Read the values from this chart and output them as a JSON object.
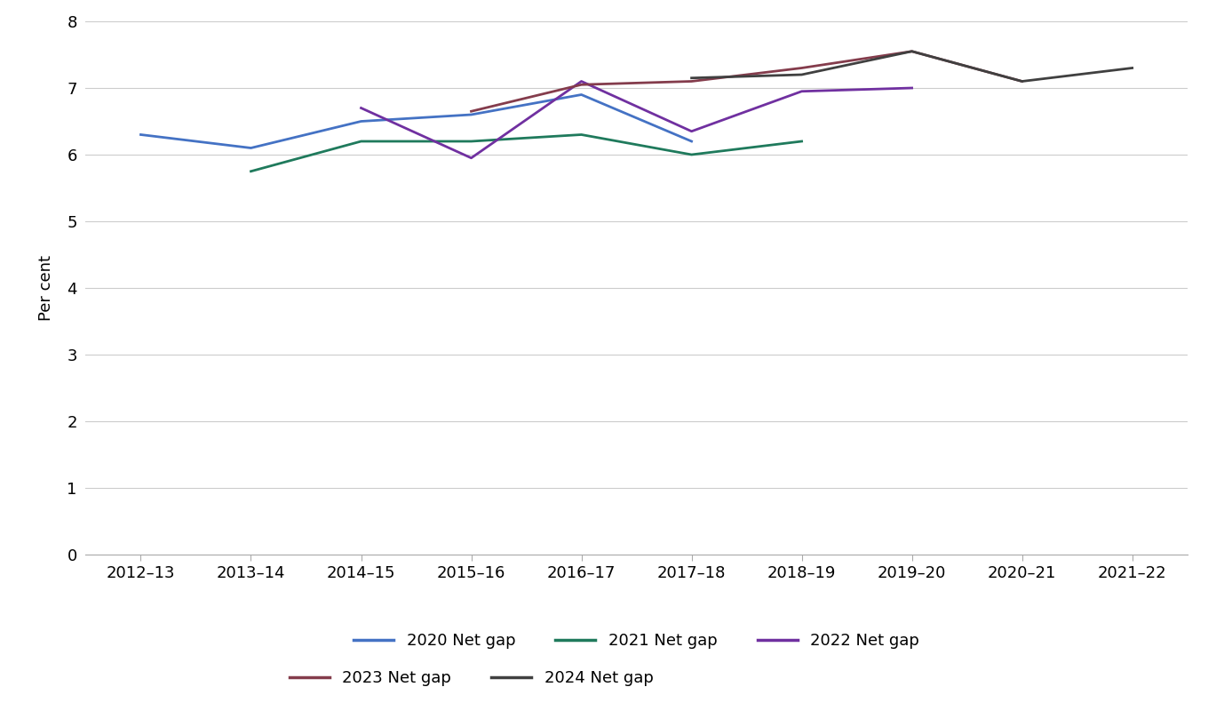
{
  "x_labels": [
    "2012–13",
    "2013–14",
    "2014–15",
    "2015–16",
    "2016–17",
    "2017–18",
    "2018–19",
    "2019–20",
    "2020–21",
    "2021–22"
  ],
  "series_order": [
    "2020 Net gap",
    "2021 Net gap",
    "2022 Net gap",
    "2023 Net gap",
    "2024 Net gap"
  ],
  "series": {
    "2020 Net gap": {
      "color": "#4472C4",
      "data": [
        6.3,
        6.1,
        6.5,
        6.6,
        6.9,
        6.2,
        null,
        null,
        null,
        null
      ]
    },
    "2021 Net gap": {
      "color": "#1F7A5C",
      "data": [
        null,
        5.75,
        6.2,
        6.2,
        6.3,
        6.0,
        6.2,
        null,
        null,
        null
      ]
    },
    "2022 Net gap": {
      "color": "#7030A0",
      "data": [
        null,
        null,
        6.7,
        5.95,
        7.1,
        6.35,
        6.95,
        7.0,
        null,
        null
      ]
    },
    "2023 Net gap": {
      "color": "#843C4C",
      "data": [
        null,
        null,
        null,
        6.65,
        7.05,
        7.1,
        7.3,
        7.55,
        7.1,
        null
      ]
    },
    "2024 Net gap": {
      "color": "#404040",
      "data": [
        null,
        null,
        null,
        null,
        null,
        7.15,
        7.2,
        7.55,
        7.1,
        7.3
      ]
    }
  },
  "ylabel": "Per cent",
  "ylim": [
    0,
    8
  ],
  "yticks": [
    0,
    1,
    2,
    3,
    4,
    5,
    6,
    7,
    8
  ],
  "background_color": "#ffffff",
  "grid_color": "#cccccc",
  "line_width": 2.0,
  "legend_row1": [
    "2020 Net gap",
    "2021 Net gap",
    "2022 Net gap"
  ],
  "legend_row2": [
    "2023 Net gap",
    "2024 Net gap"
  ]
}
